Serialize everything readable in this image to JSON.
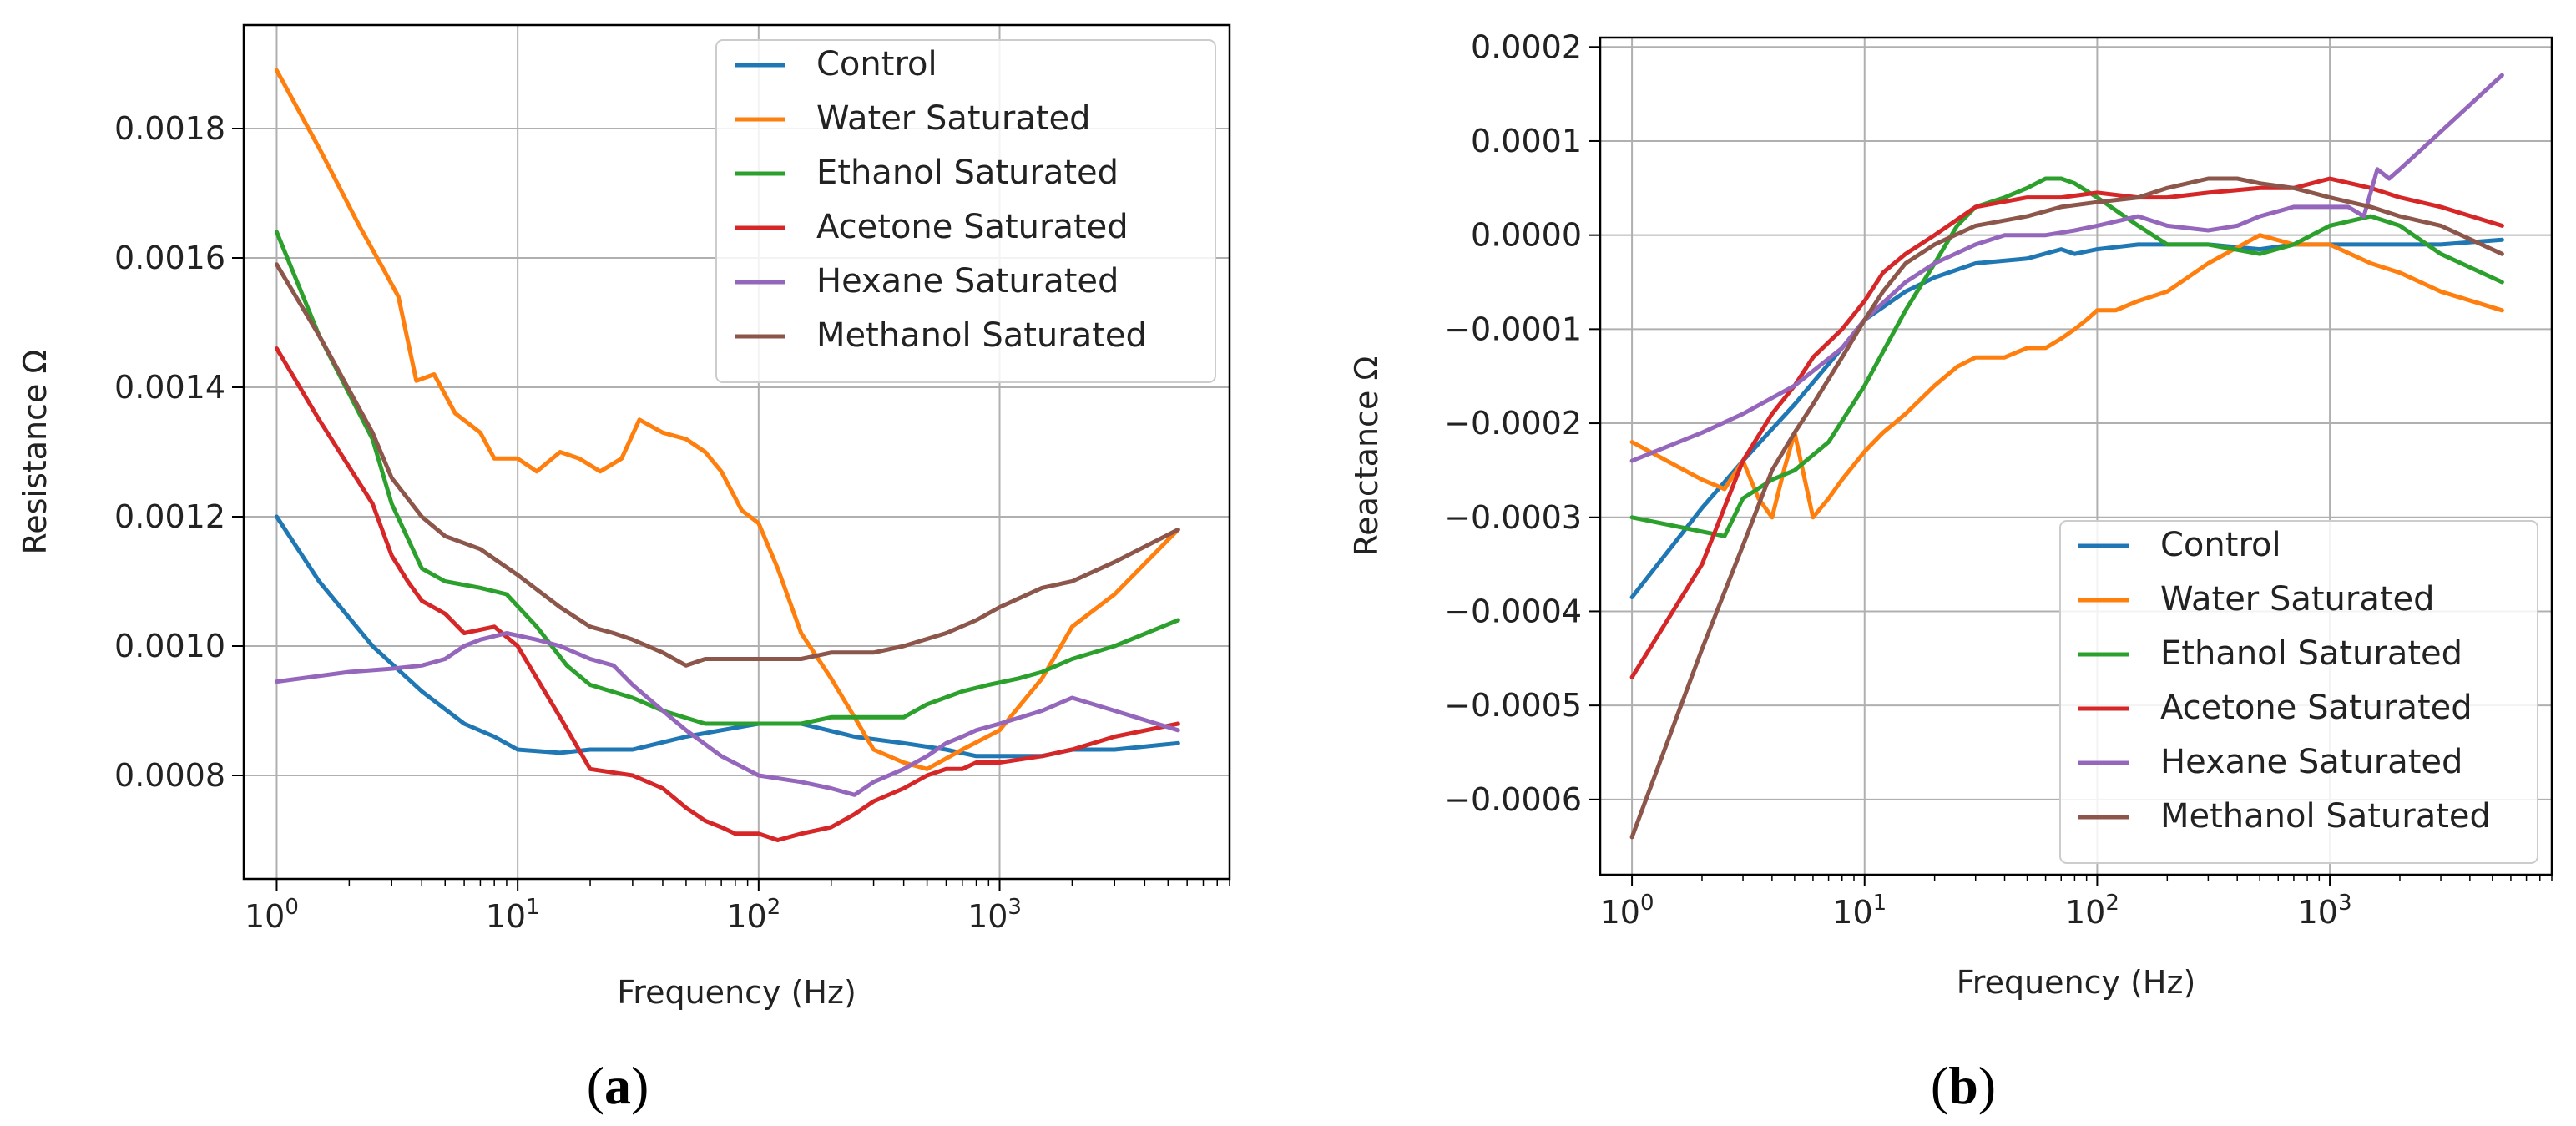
{
  "captions": {
    "a_letter": "a",
    "b_letter": "b"
  },
  "chart_data": [
    {
      "id": "a",
      "type": "line",
      "xscale": "log",
      "xlim": [
        0.73,
        9000
      ],
      "ylim": [
        0.00064,
        0.00196
      ],
      "xlabel": "Frequency (Hz)",
      "ylabel": "Resistance Ω",
      "grid": true,
      "legend_position": "top-right",
      "xticks": [
        {
          "value": 1,
          "base": "10",
          "exp": "0"
        },
        {
          "value": 10,
          "base": "10",
          "exp": "1"
        },
        {
          "value": 100,
          "base": "10",
          "exp": "2"
        },
        {
          "value": 1000,
          "base": "10",
          "exp": "3"
        }
      ],
      "yticks": [
        {
          "value": 0.0008,
          "label": "0.0008"
        },
        {
          "value": 0.001,
          "label": "0.0010"
        },
        {
          "value": 0.0012,
          "label": "0.0012"
        },
        {
          "value": 0.0014,
          "label": "0.0014"
        },
        {
          "value": 0.0016,
          "label": "0.0016"
        },
        {
          "value": 0.0018,
          "label": "0.0018"
        }
      ],
      "series": [
        {
          "name": "Control",
          "color": "#1f77b4",
          "x": [
            1,
            1.5,
            2.5,
            4,
            6,
            8,
            10,
            15,
            20,
            30,
            50,
            70,
            100,
            150,
            250,
            400,
            600,
            800,
            1000,
            1500,
            2000,
            3000,
            5500
          ],
          "y": [
            0.0012,
            0.0011,
            0.001,
            0.00093,
            0.00088,
            0.00086,
            0.00084,
            0.000835,
            0.00084,
            0.00084,
            0.00086,
            0.00087,
            0.00088,
            0.00088,
            0.00086,
            0.00085,
            0.00084,
            0.00083,
            0.00083,
            0.00083,
            0.00084,
            0.00084,
            0.00085
          ]
        },
        {
          "name": "Water Saturated",
          "color": "#ff7f0e",
          "x": [
            1,
            1.5,
            2.2,
            2.8,
            3.2,
            3.8,
            4.5,
            5.5,
            7,
            8,
            10,
            12,
            15,
            18,
            22,
            27,
            32,
            40,
            50,
            60,
            70,
            85,
            100,
            120,
            150,
            200,
            250,
            300,
            400,
            500,
            700,
            1000,
            1500,
            2000,
            3000,
            5500
          ],
          "y": [
            0.00189,
            0.00177,
            0.00165,
            0.00158,
            0.00154,
            0.00141,
            0.00142,
            0.00136,
            0.00133,
            0.00129,
            0.00129,
            0.00127,
            0.0013,
            0.00129,
            0.00127,
            0.00129,
            0.00135,
            0.00133,
            0.00132,
            0.0013,
            0.00127,
            0.00121,
            0.00119,
            0.00112,
            0.00102,
            0.00095,
            0.00089,
            0.00084,
            0.00082,
            0.00081,
            0.00084,
            0.00087,
            0.00095,
            0.00103,
            0.00108,
            0.00118
          ]
        },
        {
          "name": "Ethanol Saturated",
          "color": "#2ca02c",
          "x": [
            1,
            1.5,
            2.5,
            3,
            4,
            5,
            7,
            9,
            12,
            16,
            20,
            30,
            40,
            60,
            80,
            100,
            150,
            200,
            300,
            400,
            500,
            700,
            900,
            1200,
            1500,
            2000,
            3000,
            5500
          ],
          "y": [
            0.00164,
            0.00148,
            0.00132,
            0.00122,
            0.00112,
            0.0011,
            0.00109,
            0.00108,
            0.00103,
            0.00097,
            0.00094,
            0.00092,
            0.0009,
            0.00088,
            0.00088,
            0.00088,
            0.00088,
            0.00089,
            0.00089,
            0.00089,
            0.00091,
            0.00093,
            0.00094,
            0.00095,
            0.00096,
            0.00098,
            0.001,
            0.00104
          ]
        },
        {
          "name": "Acetone Saturated",
          "color": "#d62728",
          "x": [
            1,
            1.5,
            2.5,
            3,
            3.5,
            4,
            5,
            6,
            8,
            10,
            15,
            20,
            30,
            40,
            50,
            60,
            70,
            80,
            100,
            120,
            150,
            200,
            250,
            300,
            400,
            500,
            600,
            700,
            800,
            1000,
            1500,
            2000,
            3000,
            5500
          ],
          "y": [
            0.00146,
            0.00135,
            0.00122,
            0.00114,
            0.0011,
            0.00107,
            0.00105,
            0.00102,
            0.00103,
            0.001,
            0.00089,
            0.00081,
            0.0008,
            0.00078,
            0.00075,
            0.00073,
            0.00072,
            0.00071,
            0.00071,
            0.0007,
            0.00071,
            0.00072,
            0.00074,
            0.00076,
            0.00078,
            0.0008,
            0.00081,
            0.00081,
            0.00082,
            0.00082,
            0.00083,
            0.00084,
            0.00086,
            0.00088
          ]
        },
        {
          "name": "Hexane Saturated",
          "color": "#9467bd",
          "x": [
            1,
            2,
            3,
            4,
            5,
            6,
            7,
            9,
            12,
            15,
            20,
            25,
            30,
            40,
            50,
            70,
            100,
            150,
            200,
            250,
            300,
            400,
            500,
            600,
            700,
            800,
            1000,
            1500,
            2000,
            3000,
            5500
          ],
          "y": [
            0.000945,
            0.00096,
            0.000965,
            0.00097,
            0.00098,
            0.001,
            0.00101,
            0.00102,
            0.00101,
            0.001,
            0.00098,
            0.00097,
            0.00094,
            0.0009,
            0.00087,
            0.00083,
            0.0008,
            0.00079,
            0.00078,
            0.00077,
            0.00079,
            0.00081,
            0.00083,
            0.00085,
            0.00086,
            0.00087,
            0.00088,
            0.0009,
            0.00092,
            0.0009,
            0.00087
          ]
        },
        {
          "name": "Methanol Saturated",
          "color": "#8c564b",
          "x": [
            1,
            1.5,
            2.5,
            3,
            4,
            5,
            7,
            10,
            15,
            20,
            25,
            30,
            40,
            50,
            60,
            70,
            100,
            150,
            200,
            300,
            400,
            600,
            800,
            1000,
            1500,
            2000,
            3000,
            5500
          ],
          "y": [
            0.00159,
            0.00148,
            0.00133,
            0.00126,
            0.0012,
            0.00117,
            0.00115,
            0.00111,
            0.00106,
            0.00103,
            0.00102,
            0.00101,
            0.00099,
            0.00097,
            0.00098,
            0.00098,
            0.00098,
            0.00098,
            0.00099,
            0.00099,
            0.001,
            0.00102,
            0.00104,
            0.00106,
            0.00109,
            0.0011,
            0.00113,
            0.00118
          ]
        }
      ]
    },
    {
      "id": "b",
      "type": "line",
      "xscale": "log",
      "xlim": [
        0.73,
        9000
      ],
      "ylim": [
        -0.00068,
        0.00021
      ],
      "xlabel": "Frequency (Hz)",
      "ylabel": "Reactance Ω",
      "grid": true,
      "legend_position": "bottom-right",
      "xticks": [
        {
          "value": 1,
          "base": "10",
          "exp": "0"
        },
        {
          "value": 10,
          "base": "10",
          "exp": "1"
        },
        {
          "value": 100,
          "base": "10",
          "exp": "2"
        },
        {
          "value": 1000,
          "base": "10",
          "exp": "3"
        }
      ],
      "yticks": [
        {
          "value": -0.0006,
          "label": "−0.0006"
        },
        {
          "value": -0.0005,
          "label": "−0.0005"
        },
        {
          "value": -0.0004,
          "label": "−0.0004"
        },
        {
          "value": -0.0003,
          "label": "−0.0003"
        },
        {
          "value": -0.0002,
          "label": "−0.0002"
        },
        {
          "value": -0.0001,
          "label": "−0.0001"
        },
        {
          "value": 0.0,
          "label": "0.0000"
        },
        {
          "value": 0.0001,
          "label": "0.0001"
        },
        {
          "value": 0.0002,
          "label": "0.0002"
        }
      ],
      "series": [
        {
          "name": "Control",
          "color": "#1f77b4",
          "x": [
            1,
            2,
            3,
            5,
            8,
            10,
            15,
            20,
            30,
            50,
            70,
            80,
            100,
            150,
            200,
            300,
            500,
            700,
            1000,
            1500,
            2000,
            3000,
            5500
          ],
          "y": [
            -0.000385,
            -0.00029,
            -0.00024,
            -0.00018,
            -0.00012,
            -9e-05,
            -6e-05,
            -4.5e-05,
            -3e-05,
            -2.5e-05,
            -1.5e-05,
            -2e-05,
            -1.5e-05,
            -1e-05,
            -1e-05,
            -1e-05,
            -1.5e-05,
            -1e-05,
            -1e-05,
            -1e-05,
            -1e-05,
            -1e-05,
            -5e-06
          ]
        },
        {
          "name": "Water Saturated",
          "color": "#ff7f0e",
          "x": [
            1,
            2,
            2.5,
            3,
            3.5,
            4,
            4.5,
            5,
            6,
            7,
            8,
            10,
            12,
            15,
            20,
            25,
            30,
            40,
            50,
            60,
            70,
            80,
            90,
            100,
            120,
            150,
            200,
            300,
            500,
            700,
            1000,
            1500,
            2000,
            3000,
            5500
          ],
          "y": [
            -0.00022,
            -0.00026,
            -0.00027,
            -0.00024,
            -0.00028,
            -0.0003,
            -0.00025,
            -0.00021,
            -0.0003,
            -0.00028,
            -0.00026,
            -0.00023,
            -0.00021,
            -0.00019,
            -0.00016,
            -0.00014,
            -0.00013,
            -0.00013,
            -0.00012,
            -0.00012,
            -0.00011,
            -0.0001,
            -9e-05,
            -8e-05,
            -8e-05,
            -7e-05,
            -6e-05,
            -3e-05,
            0.0,
            -1e-05,
            -1e-05,
            -3e-05,
            -4e-05,
            -6e-05,
            -8e-05
          ]
        },
        {
          "name": "Ethanol Saturated",
          "color": "#2ca02c",
          "x": [
            1,
            2.5,
            3,
            4,
            5,
            7,
            10,
            15,
            20,
            25,
            30,
            40,
            50,
            60,
            70,
            80,
            100,
            150,
            200,
            300,
            500,
            700,
            1000,
            1500,
            2000,
            3000,
            5500
          ],
          "y": [
            -0.0003,
            -0.00032,
            -0.00028,
            -0.00026,
            -0.00025,
            -0.00022,
            -0.00016,
            -8e-05,
            -3e-05,
            1e-05,
            3e-05,
            4e-05,
            5e-05,
            6e-05,
            6e-05,
            5.5e-05,
            4e-05,
            1e-05,
            -1e-05,
            -1e-05,
            -2e-05,
            -1e-05,
            1e-05,
            2e-05,
            1e-05,
            -2e-05,
            -5e-05
          ]
        },
        {
          "name": "Acetone Saturated",
          "color": "#d62728",
          "x": [
            1,
            2,
            3,
            4,
            5,
            6,
            8,
            10,
            12,
            15,
            20,
            30,
            50,
            70,
            100,
            150,
            200,
            300,
            500,
            700,
            1000,
            1500,
            2000,
            3000,
            5500
          ],
          "y": [
            -0.00047,
            -0.00035,
            -0.00024,
            -0.00019,
            -0.00016,
            -0.00013,
            -0.0001,
            -7e-05,
            -4e-05,
            -2e-05,
            0.0,
            3e-05,
            4e-05,
            4e-05,
            4.5e-05,
            4e-05,
            4e-05,
            4.5e-05,
            5e-05,
            5e-05,
            6e-05,
            5e-05,
            4e-05,
            3e-05,
            1e-05
          ]
        },
        {
          "name": "Hexane Saturated",
          "color": "#9467bd",
          "x": [
            1,
            2,
            3,
            5,
            8,
            10,
            15,
            20,
            30,
            40,
            50,
            60,
            80,
            100,
            150,
            200,
            300,
            400,
            500,
            700,
            1000,
            1200,
            1400,
            1600,
            1800,
            2000,
            3000,
            5500
          ],
          "y": [
            -0.00024,
            -0.00021,
            -0.00019,
            -0.00016,
            -0.00012,
            -9e-05,
            -5e-05,
            -3e-05,
            -1e-05,
            0.0,
            0.0,
            0.0,
            5e-06,
            1e-05,
            2e-05,
            1e-05,
            5e-06,
            1e-05,
            2e-05,
            3e-05,
            3e-05,
            3e-05,
            2e-05,
            7e-05,
            6e-05,
            7e-05,
            0.00011,
            0.00017
          ]
        },
        {
          "name": "Methanol Saturated",
          "color": "#8c564b",
          "x": [
            1,
            2,
            3,
            4,
            5,
            6,
            8,
            10,
            12,
            15,
            20,
            30,
            50,
            70,
            100,
            150,
            200,
            300,
            400,
            500,
            700,
            1000,
            1500,
            2000,
            3000,
            5500
          ],
          "y": [
            -0.00064,
            -0.00044,
            -0.00033,
            -0.00025,
            -0.00021,
            -0.00018,
            -0.00013,
            -9e-05,
            -6e-05,
            -3e-05,
            -1e-05,
            1e-05,
            2e-05,
            3e-05,
            3.5e-05,
            4e-05,
            5e-05,
            6e-05,
            6e-05,
            5.5e-05,
            5e-05,
            4e-05,
            3e-05,
            2e-05,
            1e-05,
            -2e-05
          ]
        }
      ]
    }
  ]
}
